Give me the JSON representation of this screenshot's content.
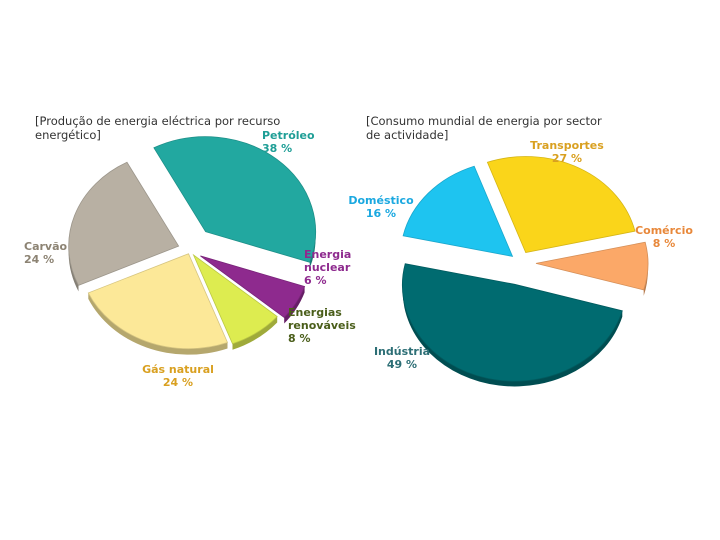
{
  "chart_data": [
    {
      "type": "pie",
      "title_lines": [
        "[Produção de energia eléctrica por recurso",
        "energético]"
      ],
      "unit": "%",
      "slices": [
        {
          "label": [
            "Petróleo"
          ],
          "value": 38,
          "value_text": "38 %",
          "color": "#22A8A0",
          "label_color": "#1E9E96"
        },
        {
          "label": [
            "Energia",
            "nuclear"
          ],
          "value": 6,
          "value_text": "6 %",
          "color": "#8E2A8E",
          "label_color": "#8E2A8E"
        },
        {
          "label": [
            "Energias",
            "renováveis"
          ],
          "value": 8,
          "value_text": "8 %",
          "color": "#DDEC50",
          "label_color": "#4A5E1A"
        },
        {
          "label": [
            "Gás natural"
          ],
          "value": 24,
          "value_text": "24 %",
          "color": "#FCE898",
          "label_color": "#D9A020"
        },
        {
          "label": [
            "Carvão"
          ],
          "value": 24,
          "value_text": "24 %",
          "color": "#B8B0A3",
          "label_color": "#8C8373"
        }
      ]
    },
    {
      "type": "pie",
      "title_lines": [
        "[Consumo mundial de energia por sector",
        "de actividade]"
      ],
      "unit": "%",
      "slices": [
        {
          "label": [
            "Transportes"
          ],
          "value": 27,
          "value_text": "27 %",
          "color": "#FAD51A",
          "label_color": "#D9A020"
        },
        {
          "label": [
            "Comércio"
          ],
          "value": 8,
          "value_text": "8 %",
          "color": "#FBA868",
          "label_color": "#E8883A"
        },
        {
          "label": [
            "Indústria"
          ],
          "value": 49,
          "value_text": "49 %",
          "color": "#006B70",
          "label_color": "#2C6E75"
        },
        {
          "label": [
            "Doméstico"
          ],
          "value": 16,
          "value_text": "16 %",
          "color": "#1EC4F0",
          "label_color": "#1AA8E0"
        }
      ]
    }
  ]
}
